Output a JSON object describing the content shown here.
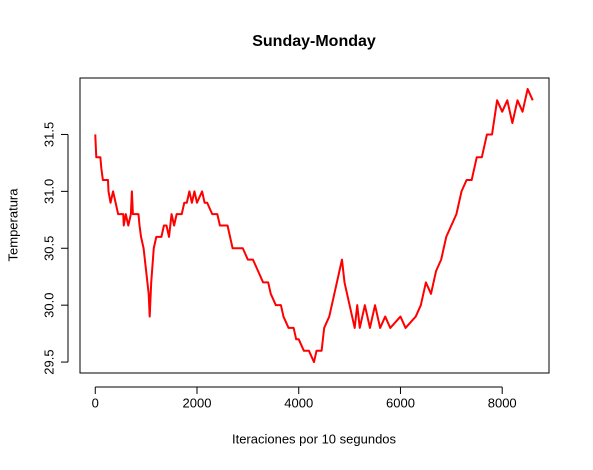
{
  "chart_data": {
    "type": "line",
    "title": "Sunday-Monday",
    "x_label": "Iteraciones por 10 segundos",
    "y_label": "Temperatura",
    "xlim": [
      -300,
      8920
    ],
    "ylim": [
      29.404,
      31.996
    ],
    "xticks": [
      0,
      2000,
      4000,
      6000,
      8000
    ],
    "yticks": [
      29.5,
      {
        "value": 30,
        "label": "30.0"
      },
      30.5,
      {
        "value": 31,
        "label": "31.0"
      },
      31.5
    ],
    "x": [
      0,
      20,
      100,
      120,
      150,
      250,
      260,
      300,
      350,
      400,
      450,
      550,
      560,
      600,
      650,
      700,
      720,
      740,
      850,
      870,
      900,
      950,
      1000,
      1050,
      1070,
      1100,
      1150,
      1200,
      1300,
      1350,
      1400,
      1450,
      1500,
      1550,
      1600,
      1700,
      1750,
      1800,
      1850,
      1900,
      1950,
      2000,
      2100,
      2150,
      2200,
      2300,
      2400,
      2450,
      2600,
      2650,
      2700,
      2800,
      2900,
      3000,
      3100,
      3200,
      3300,
      3400,
      3450,
      3550,
      3650,
      3700,
      3800,
      3900,
      3950,
      4000,
      4100,
      4200,
      4300,
      4350,
      4450,
      4500,
      4600,
      4700,
      4800,
      4850,
      4900,
      5000,
      5100,
      5150,
      5200,
      5300,
      5400,
      5500,
      5600,
      5700,
      5800,
      6000,
      6100,
      6300,
      6400,
      6500,
      6600,
      6700,
      6800,
      6900,
      7000,
      7100,
      7200,
      7300,
      7400,
      7500,
      7600,
      7700,
      7800,
      7900,
      8000,
      8100,
      8200,
      8300,
      8400,
      8500,
      8600
    ],
    "series": [
      {
        "name": "Temperatura",
        "color": "#ff0000",
        "values": [
          31.5,
          31.3,
          31.3,
          31.2,
          31.1,
          31.1,
          31.0,
          30.9,
          31.0,
          30.9,
          30.8,
          30.8,
          30.7,
          30.8,
          30.7,
          30.8,
          31.0,
          30.8,
          30.8,
          30.7,
          30.6,
          30.5,
          30.3,
          30.1,
          29.9,
          30.2,
          30.5,
          30.6,
          30.6,
          30.7,
          30.7,
          30.6,
          30.8,
          30.7,
          30.8,
          30.8,
          30.9,
          30.9,
          31.0,
          30.9,
          31.0,
          30.9,
          31.0,
          30.9,
          30.9,
          30.8,
          30.8,
          30.7,
          30.7,
          30.6,
          30.5,
          30.5,
          30.5,
          30.4,
          30.4,
          30.3,
          30.2,
          30.2,
          30.1,
          30.0,
          30.0,
          29.9,
          29.8,
          29.8,
          29.7,
          29.7,
          29.6,
          29.6,
          29.5,
          29.6,
          29.6,
          29.8,
          29.9,
          30.1,
          30.3,
          30.4,
          30.2,
          30.0,
          29.8,
          30.0,
          29.8,
          30.0,
          29.8,
          30.0,
          29.8,
          29.9,
          29.8,
          29.9,
          29.8,
          29.9,
          30.0,
          30.2,
          30.1,
          30.3,
          30.4,
          30.6,
          30.7,
          30.8,
          31.0,
          31.1,
          31.1,
          31.3,
          31.3,
          31.5,
          31.5,
          31.8,
          31.7,
          31.8,
          31.6,
          31.8,
          31.7,
          31.9,
          31.8
        ]
      }
    ]
  }
}
